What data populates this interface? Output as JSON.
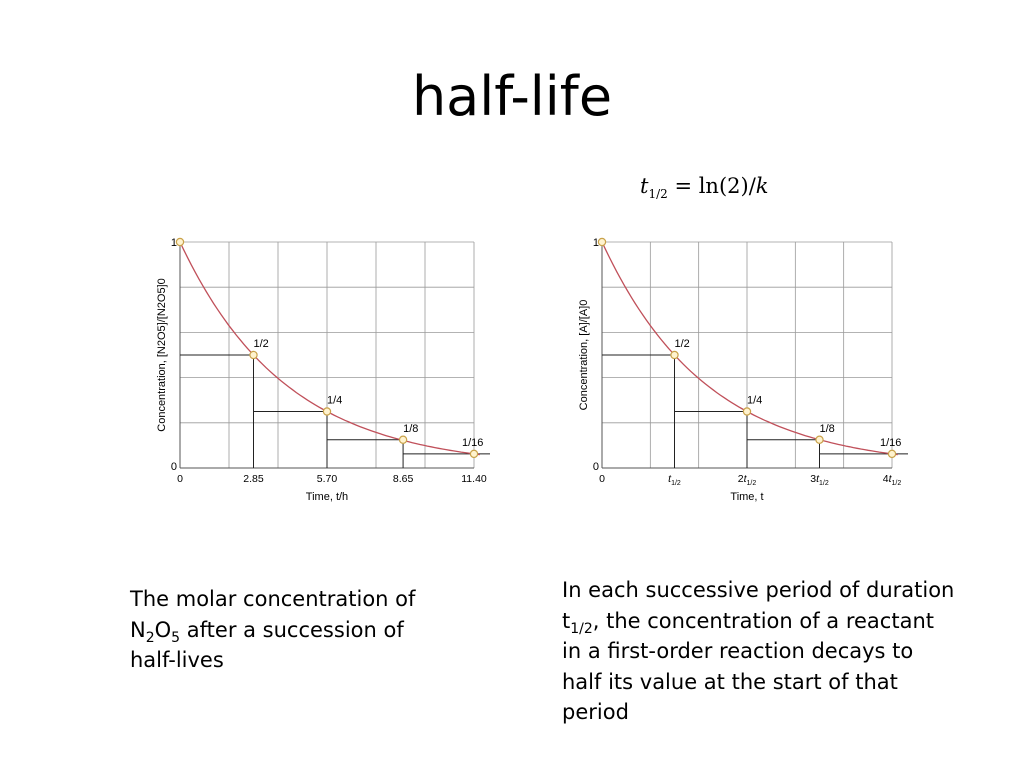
{
  "slide": {
    "title": "half-life",
    "formula": {
      "lhs_var": "t",
      "lhs_sub": "1/2",
      "rhs_prefix": " = ln(2)/",
      "rhs_var": "k"
    },
    "caption_left": {
      "line1": "The molar concentration of",
      "n": "N",
      "n_sub": "2",
      "o": "O",
      "o_sub": "5",
      "line2_rest": " after a succession of",
      "line3": "half-lives"
    },
    "caption_right": {
      "line1": "In each successive period of duration",
      "t": "t",
      "t_sub": "1/2",
      "line2_rest": ", the concentration of a reactant",
      "line3": "in a first-order reaction decays to",
      "line4": "half its value at the start of that",
      "line5": "period"
    }
  },
  "colors": {
    "curve": "#c0505a",
    "grid": "#9a9a9a",
    "marker_fill": "#fff3cf",
    "marker_stroke": "#c9a24a",
    "step_line": "#222222"
  },
  "chart_data": [
    {
      "type": "line",
      "title": "",
      "xlabel": "Time, t/h",
      "ylabel": "Concentration, [N2O5]/[N2O5]0",
      "xlim": [
        0,
        11.4
      ],
      "ylim": [
        0,
        1
      ],
      "grid": true,
      "x_ticks": [
        "0",
        "2.85",
        "5.70",
        "8.65",
        "11.40"
      ],
      "x": [
        0,
        2.85,
        5.7,
        8.65,
        11.4
      ],
      "y_ticks": [
        "0",
        "1"
      ],
      "series": [
        {
          "x": [
            0,
            2.85,
            5.7,
            8.65,
            11.4
          ],
          "y": [
            1,
            0.5,
            0.25,
            0.125,
            0.0625
          ]
        }
      ],
      "point_labels": [
        "1/2",
        "1/4",
        "1/8",
        "1/16"
      ]
    },
    {
      "type": "line",
      "title": "",
      "xlabel": "Time, t",
      "ylabel": "Concentration, [A]/[A]0",
      "xlim": [
        0,
        4
      ],
      "ylim": [
        0,
        1
      ],
      "grid": true,
      "x_ticks": [
        "0",
        "t1/2",
        "2t1/2",
        "3t1/2",
        "4t1/2"
      ],
      "x": [
        0,
        1,
        2,
        3,
        4
      ],
      "y_ticks": [
        "0",
        "1"
      ],
      "series": [
        {
          "x": [
            0,
            1,
            2,
            3,
            4
          ],
          "y": [
            1,
            0.5,
            0.25,
            0.125,
            0.0625
          ]
        }
      ],
      "point_labels": [
        "1/2",
        "1/4",
        "1/8",
        "1/16"
      ]
    }
  ]
}
